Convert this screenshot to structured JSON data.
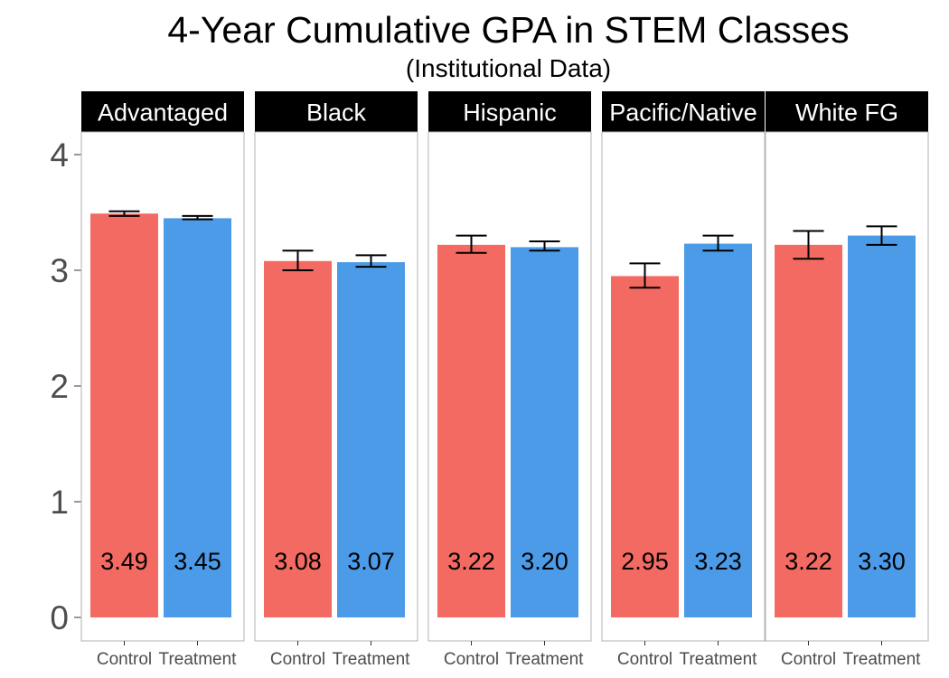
{
  "chart_data": {
    "type": "bar",
    "title": "4-Year Cumulative GPA in STEM Classes",
    "subtitle": "(Institutional Data)",
    "xlabel": "",
    "ylabel": "",
    "ylim": [
      0,
      4.2
    ],
    "yticks": [
      "0",
      "1",
      "2",
      "3",
      "4"
    ],
    "grid": false,
    "legend": "none",
    "categories": [
      "Control",
      "Treatment"
    ],
    "colors": {
      "Control": "#f26a61",
      "Treatment": "#4c9be8",
      "strip": "#000000",
      "panel_border": "#b3b3b3"
    },
    "panels": [
      {
        "name": "Advantaged",
        "values": [
          3.49,
          3.45
        ],
        "labels": [
          "3.49",
          "3.45"
        ],
        "error": [
          [
            3.47,
            3.51
          ],
          [
            3.44,
            3.47
          ]
        ]
      },
      {
        "name": "Black",
        "values": [
          3.08,
          3.07
        ],
        "labels": [
          "3.08",
          "3.07"
        ],
        "error": [
          [
            3.0,
            3.17
          ],
          [
            3.03,
            3.13
          ]
        ]
      },
      {
        "name": "Hispanic",
        "values": [
          3.22,
          3.2
        ],
        "labels": [
          "3.22",
          "3.20"
        ],
        "error": [
          [
            3.15,
            3.3
          ],
          [
            3.17,
            3.25
          ]
        ]
      },
      {
        "name": "Pacific/Native",
        "values": [
          2.95,
          3.23
        ],
        "labels": [
          "2.95",
          "3.23"
        ],
        "error": [
          [
            2.85,
            3.06
          ],
          [
            3.17,
            3.3
          ]
        ]
      },
      {
        "name": "White FG",
        "values": [
          3.22,
          3.3
        ],
        "labels": [
          "3.22",
          "3.30"
        ],
        "error": [
          [
            3.1,
            3.34
          ],
          [
            3.22,
            3.38
          ]
        ]
      }
    ]
  }
}
